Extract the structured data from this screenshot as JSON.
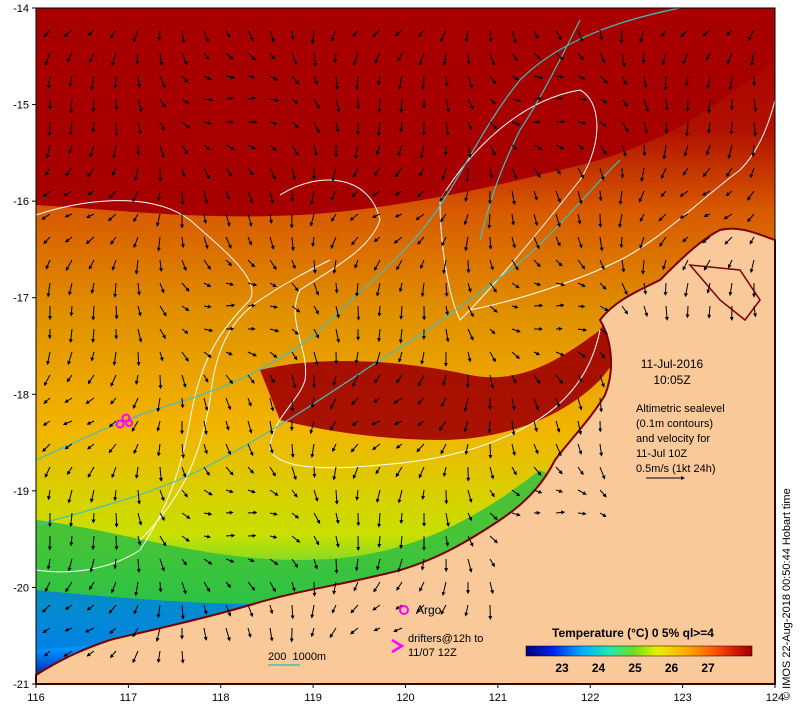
{
  "map": {
    "date": "11-Jul-2016",
    "time": "10:05Z",
    "info_lines": [
      "Altimetric sealevel",
      "(0.1m contours)",
      "and velocity for",
      "11-Jul 10Z",
      "0.5m/s (1kt 24h)"
    ],
    "credit": "© IMOS 22-Aug-2018 00:50:44 Hobart time",
    "lon_ticks": [
      "116",
      "117",
      "118",
      "119",
      "120",
      "121",
      "122",
      "123",
      "124"
    ],
    "lat_ticks": [
      "-14",
      "-15",
      "-16",
      "-17",
      "-18",
      "-19",
      "-20",
      "-21"
    ],
    "legend": {
      "argo_label": "Argo",
      "drifters_label": "drifters@12h to",
      "drifters_label2": "11/07 12Z",
      "bathy_label": "200  1000m"
    },
    "colorbar": {
      "title": "Temperature (°C) 0 5% ql>=4",
      "ticks": [
        "23",
        "24",
        "25",
        "26",
        "27"
      ]
    },
    "colors": {
      "land": "#f9c99a",
      "warm": "#a80000",
      "argo": "#ff00ff",
      "contour": "#ffffff",
      "bathy": "#40c0c0"
    }
  }
}
